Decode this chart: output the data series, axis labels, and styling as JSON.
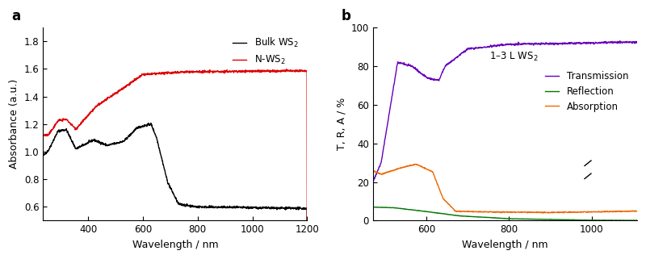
{
  "panel_a": {
    "title": "a",
    "xlabel": "Wavelength / nm",
    "ylabel": "Absorbance (a.u.)",
    "xlim": [
      235,
      1200
    ],
    "ylim": [
      0.5,
      1.9
    ],
    "yticks": [
      0.6,
      0.8,
      1.0,
      1.2,
      1.4,
      1.6,
      1.8
    ],
    "xticks": [
      400,
      600,
      800,
      1000,
      1200
    ],
    "bulk_color": "#000000",
    "nws2_color": "#dd0000",
    "legend_labels": [
      "Bulk WS$_2$",
      "N-WS$_2$"
    ]
  },
  "panel_b": {
    "title": "b",
    "xlabel": "Wavelength / nm",
    "ylabel": "T, R, A / %",
    "xlim": [
      470,
      1110
    ],
    "ylim": [
      0,
      100
    ],
    "yticks": [
      0,
      20,
      40,
      60,
      80,
      100
    ],
    "xticks": [
      600,
      800,
      1000
    ],
    "transmission_color": "#6600bb",
    "reflection_color": "#007700",
    "absorption_color": "#ee6600",
    "annotation": "1–3 L WS$_2$",
    "legend_labels": [
      "Transmission",
      "Reflection",
      "Absorption"
    ]
  }
}
